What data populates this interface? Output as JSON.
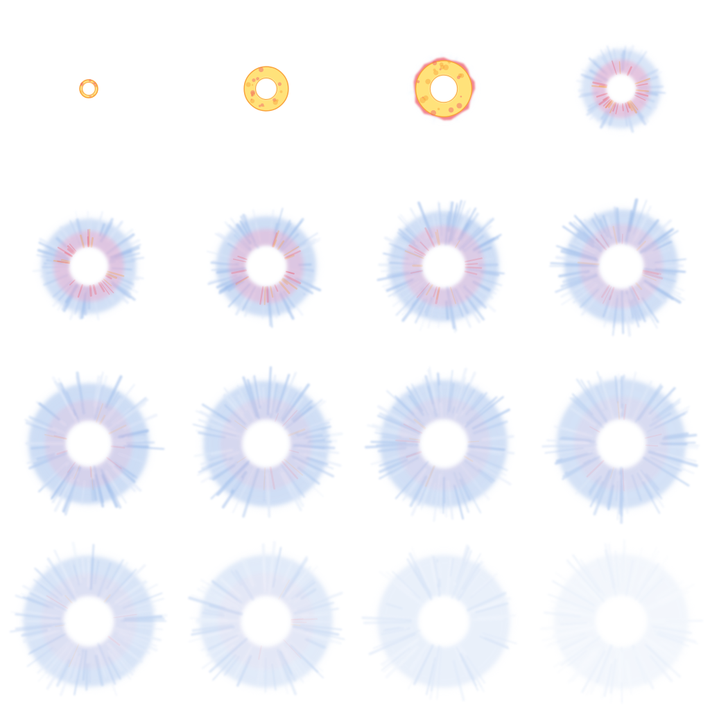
{
  "sprite_sheet": {
    "columns": 4,
    "rows": 4,
    "colors": {
      "core_yellow": "#ffe27a",
      "core_orange": "#f9a23c",
      "hot_red": "#ef5b6a",
      "pink": "#f2a6c8",
      "smoke_blue": "#9dbcea",
      "smoke_pale": "#dbe6f8",
      "background": "#ffffff"
    },
    "frames": [
      {
        "index": 1,
        "size": 0.11,
        "hole": 0.42,
        "opacity": 1.0,
        "heat": 1.0,
        "smoke": 0.0,
        "spikes": 0.1
      },
      {
        "index": 2,
        "size": 0.27,
        "hole": 0.28,
        "opacity": 1.0,
        "heat": 1.0,
        "smoke": 0.0,
        "spikes": 0.1
      },
      {
        "index": 3,
        "size": 0.37,
        "hole": 0.26,
        "opacity": 1.0,
        "heat": 0.9,
        "smoke": 0.05,
        "spikes": 0.12
      },
      {
        "index": 4,
        "size": 0.46,
        "hole": 0.22,
        "opacity": 1.0,
        "heat": 0.7,
        "smoke": 0.6,
        "spikes": 0.15
      },
      {
        "index": 5,
        "size": 0.55,
        "hole": 0.24,
        "opacity": 1.0,
        "heat": 0.6,
        "smoke": 0.75,
        "spikes": 0.3
      },
      {
        "index": 6,
        "size": 0.58,
        "hole": 0.24,
        "opacity": 1.0,
        "heat": 0.55,
        "smoke": 0.8,
        "spikes": 0.35
      },
      {
        "index": 7,
        "size": 0.64,
        "hole": 0.23,
        "opacity": 0.95,
        "heat": 0.45,
        "smoke": 0.85,
        "spikes": 0.4
      },
      {
        "index": 8,
        "size": 0.66,
        "hole": 0.23,
        "opacity": 0.92,
        "heat": 0.3,
        "smoke": 0.85,
        "spikes": 0.42
      },
      {
        "index": 9,
        "size": 0.7,
        "hole": 0.22,
        "opacity": 0.92,
        "heat": 0.2,
        "smoke": 0.9,
        "spikes": 0.4
      },
      {
        "index": 10,
        "size": 0.73,
        "hole": 0.22,
        "opacity": 0.88,
        "heat": 0.12,
        "smoke": 0.9,
        "spikes": 0.38
      },
      {
        "index": 11,
        "size": 0.74,
        "hole": 0.22,
        "opacity": 0.85,
        "heat": 0.08,
        "smoke": 0.9,
        "spikes": 0.36
      },
      {
        "index": 12,
        "size": 0.75,
        "hole": 0.22,
        "opacity": 0.8,
        "heat": 0.06,
        "smoke": 0.9,
        "spikes": 0.36
      },
      {
        "index": 13,
        "size": 0.76,
        "hole": 0.22,
        "opacity": 0.72,
        "heat": 0.04,
        "smoke": 0.9,
        "spikes": 0.35
      },
      {
        "index": 14,
        "size": 0.77,
        "hole": 0.22,
        "opacity": 0.55,
        "heat": 0.02,
        "smoke": 0.9,
        "spikes": 0.34
      },
      {
        "index": 15,
        "size": 0.77,
        "hole": 0.22,
        "opacity": 0.4,
        "heat": 0.0,
        "smoke": 0.9,
        "spikes": 0.34
      },
      {
        "index": 16,
        "size": 0.78,
        "hole": 0.22,
        "opacity": 0.22,
        "heat": 0.0,
        "smoke": 0.9,
        "spikes": 0.34
      }
    ]
  }
}
